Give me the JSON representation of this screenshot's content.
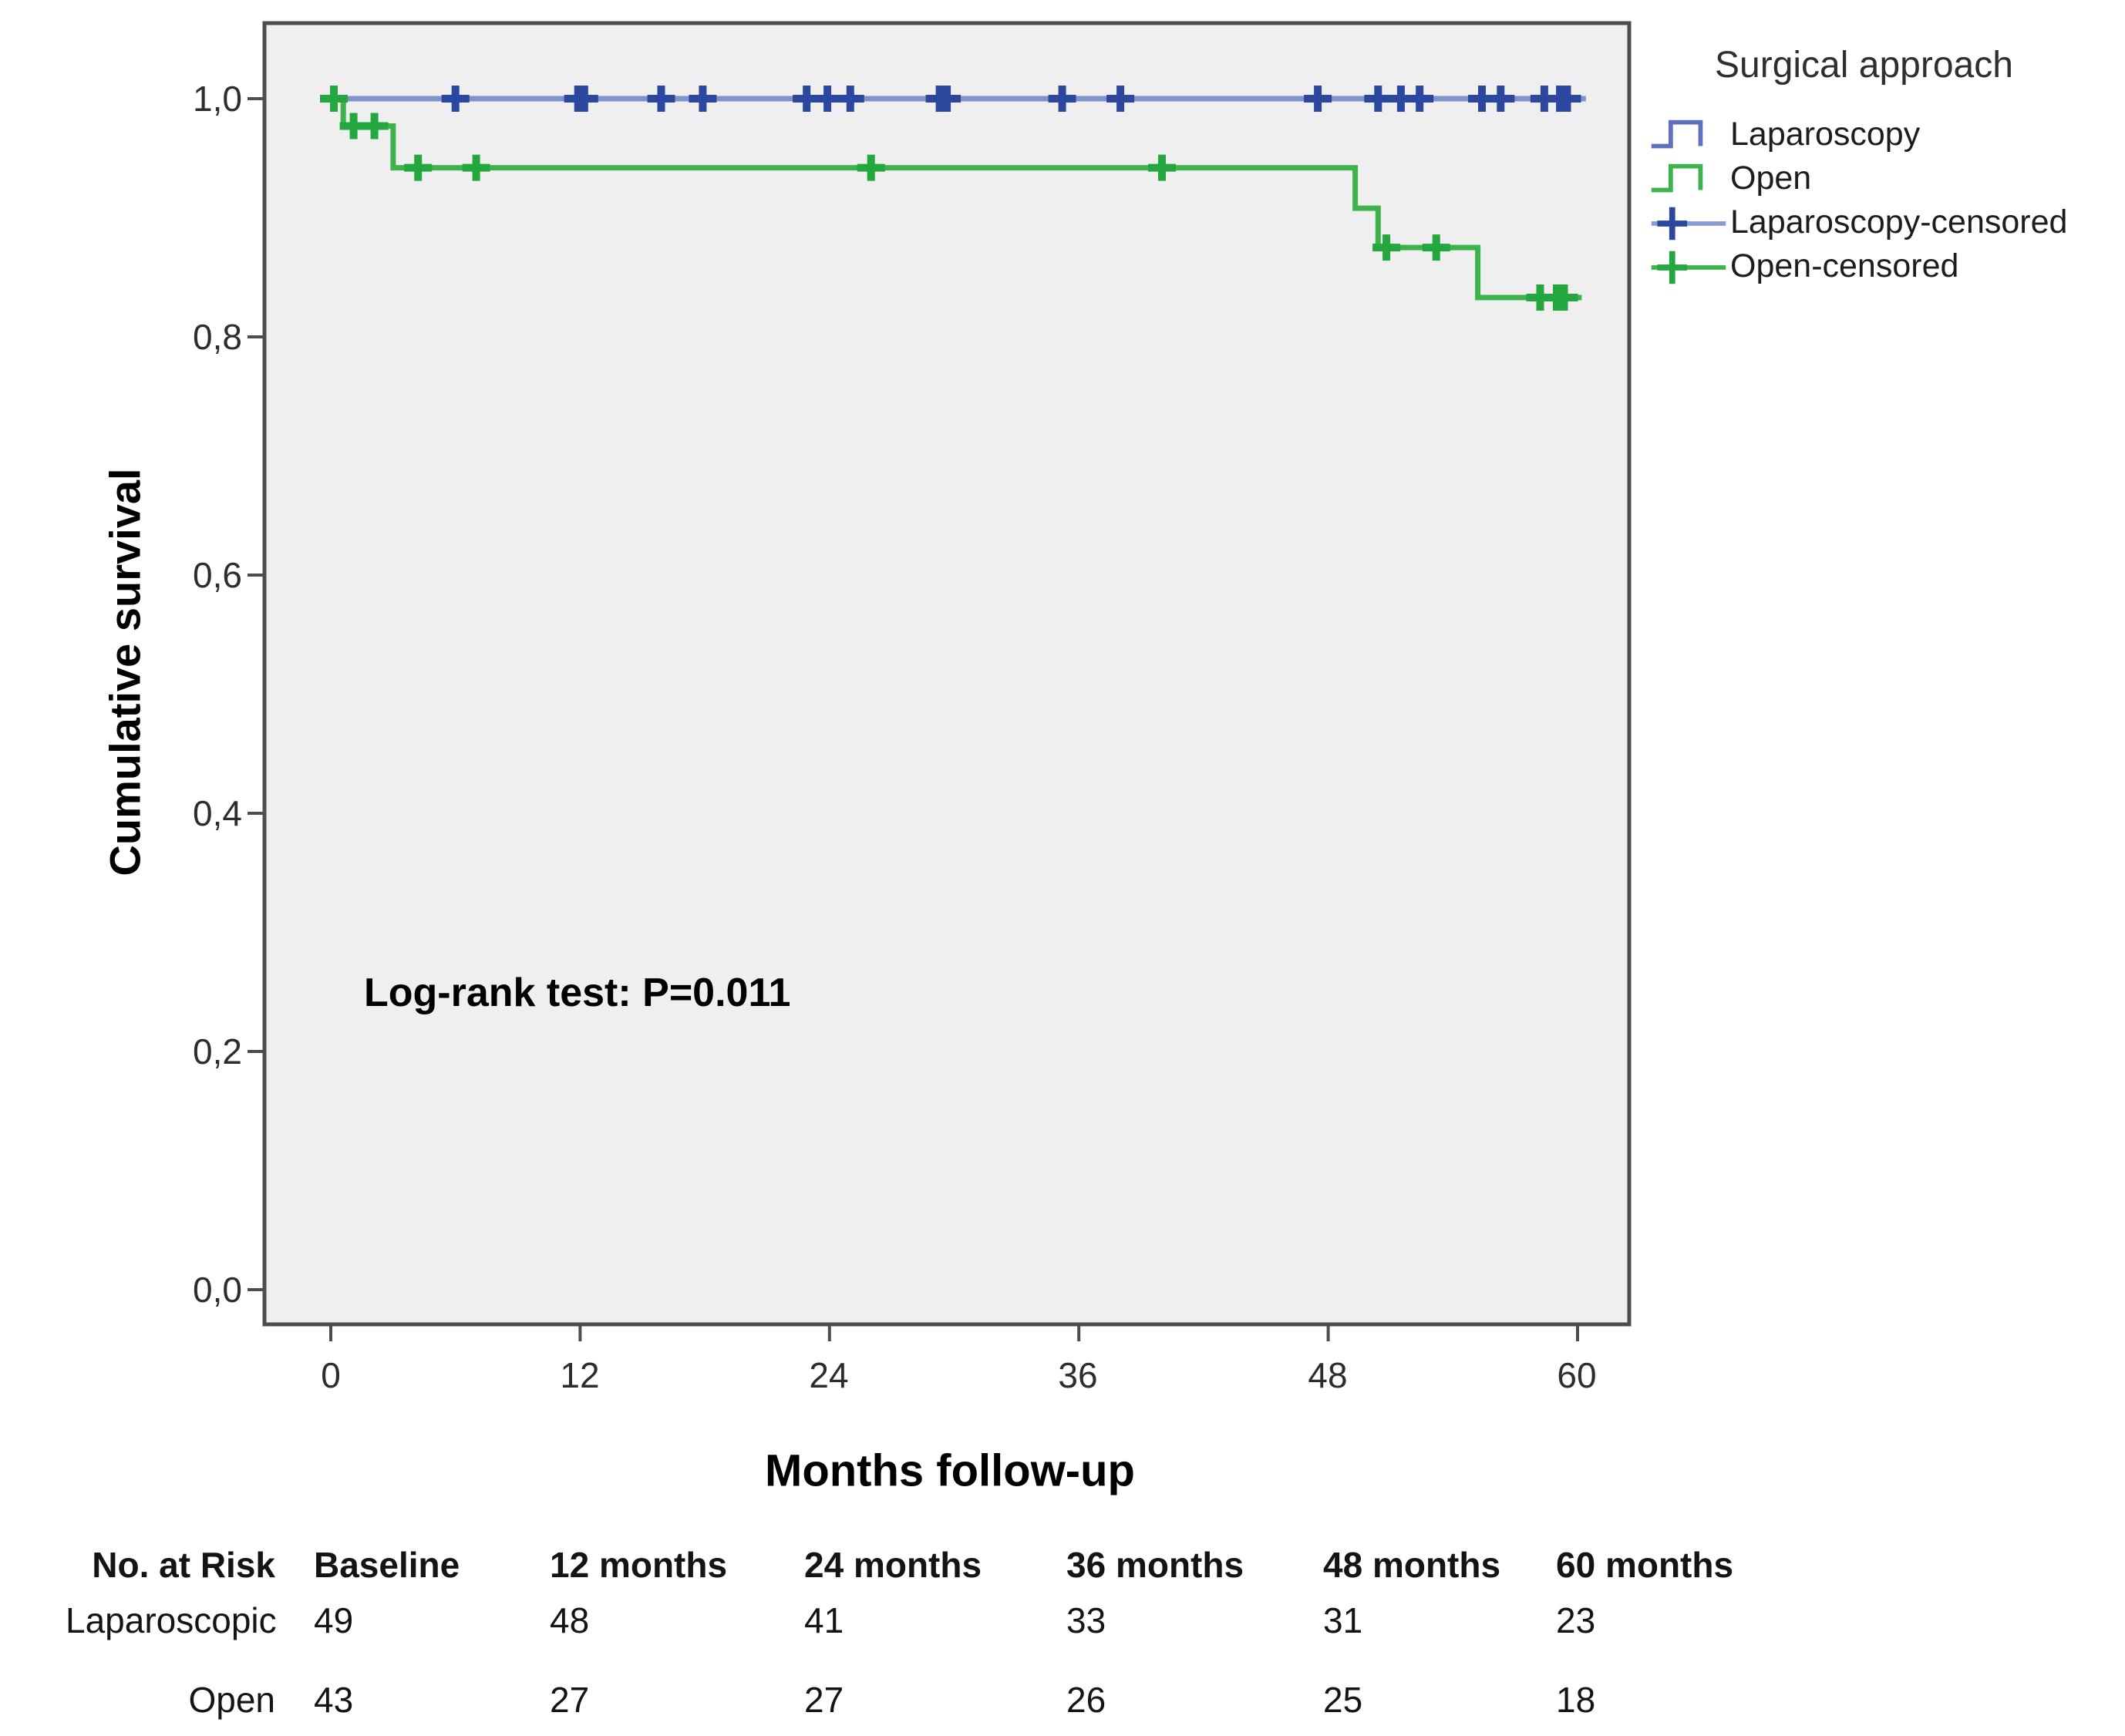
{
  "chart_data": {
    "type": "line",
    "subtype": "kaplan-meier-step",
    "title": "",
    "xlabel": "Months follow-up",
    "ylabel": "Cumulative survival",
    "xlim": [
      -3,
      63.5
    ],
    "ylim": [
      -0.05,
      1.07
    ],
    "grid": false,
    "plot_background": "#efeff0",
    "frame_color": "#4d4d4d",
    "x_ticks": {
      "labels": [
        "0",
        "12",
        "24",
        "36",
        "48",
        "60"
      ],
      "values": [
        0,
        12,
        24,
        36,
        48,
        60
      ]
    },
    "y_ticks": {
      "labels": [
        "1,0",
        "0,8",
        "0,6",
        "0,4",
        "0,2",
        "0,0"
      ],
      "values": [
        1.0,
        0.8,
        0.6,
        0.4,
        0.2,
        0.0
      ]
    },
    "annotation": {
      "text": "Log-rank test: P=0.011",
      "x_month": 1.6,
      "y_value": 0.235
    },
    "legend": {
      "title": "Surgical approach",
      "position": "right-top",
      "entries": [
        {
          "label": "Laparoscopy",
          "type": "step",
          "line_color": "#5e71bd"
        },
        {
          "label": "Open",
          "type": "step",
          "line_color": "#3eb24b"
        },
        {
          "label": "Laparoscopy-censored",
          "type": "censored-line",
          "line_color": "#8a9ad2",
          "plus_color": "#2c479f"
        },
        {
          "label": "Open-censored",
          "type": "censored-line",
          "line_color": "#3eb24b",
          "plus_color": "#23a73e"
        }
      ]
    },
    "series": [
      {
        "name": "Laparoscopy",
        "line_color": "#8191c9",
        "censor_color": "#2c479f",
        "line_width": 7,
        "steps": [
          [
            0,
            1.0
          ],
          [
            60.4,
            1.0
          ]
        ],
        "censor_marks": [
          [
            6,
            1.0
          ],
          [
            11.9,
            1.0
          ],
          [
            12.2,
            1.0
          ],
          [
            15.9,
            1.0
          ],
          [
            17.9,
            1.0
          ],
          [
            22.9,
            1.0
          ],
          [
            23.9,
            1.0
          ],
          [
            25.0,
            1.0
          ],
          [
            29.3,
            1.0
          ],
          [
            29.65,
            1.0
          ],
          [
            35.2,
            1.0
          ],
          [
            38.0,
            1.0
          ],
          [
            47.5,
            1.0
          ],
          [
            50.4,
            1.0
          ],
          [
            51.5,
            1.0
          ],
          [
            52.4,
            1.0
          ],
          [
            55.4,
            1.0
          ],
          [
            56.3,
            1.0
          ],
          [
            58.4,
            1.0
          ],
          [
            59.15,
            1.0
          ],
          [
            59.5,
            1.0
          ]
        ]
      },
      {
        "name": "Open",
        "line_color": "#3eb24b",
        "censor_color": "#23a73e",
        "line_width": 7,
        "steps": [
          [
            0,
            1.0
          ],
          [
            0.6,
            0.977
          ],
          [
            3.0,
            0.942
          ],
          [
            49.3,
            0.908
          ],
          [
            50.4,
            0.875
          ],
          [
            55.2,
            0.833
          ],
          [
            60.2,
            0.833
          ]
        ],
        "censor_marks": [
          [
            0.15,
            1.0
          ],
          [
            1.1,
            0.977
          ],
          [
            2.1,
            0.977
          ],
          [
            4.2,
            0.942
          ],
          [
            7.0,
            0.942
          ],
          [
            26.0,
            0.942
          ],
          [
            40.0,
            0.942
          ],
          [
            50.8,
            0.875
          ],
          [
            53.2,
            0.875
          ],
          [
            58.2,
            0.833
          ],
          [
            59.0,
            0.833
          ],
          [
            59.35,
            0.833
          ]
        ]
      }
    ]
  },
  "risk_table": {
    "corner_header": "No. at Risk",
    "columns": [
      "Baseline",
      "12 months",
      "24 months",
      "36 months",
      "48 months",
      "60 months"
    ],
    "rows": [
      {
        "label": "Laparoscopic",
        "values": [
          "49",
          "48",
          "41",
          "33",
          "31",
          "23"
        ]
      },
      {
        "label": "Open",
        "values": [
          "43",
          "27",
          "27",
          "26",
          "25",
          "18"
        ]
      }
    ]
  }
}
